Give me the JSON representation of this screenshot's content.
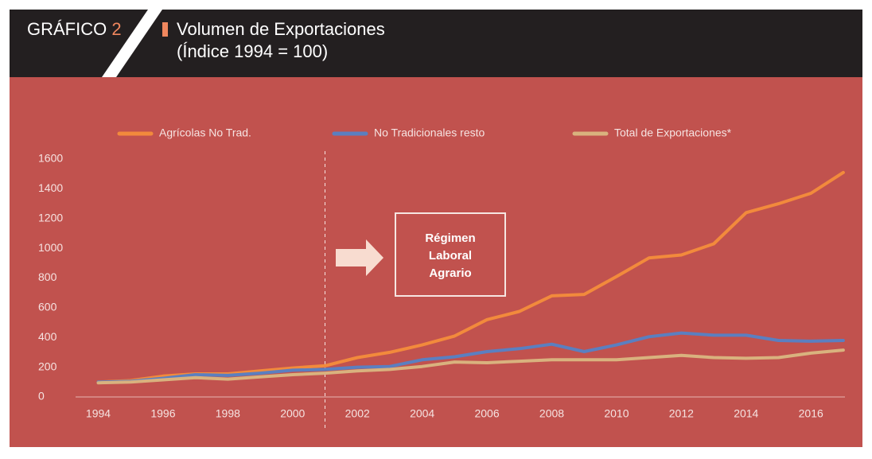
{
  "chart_data": {
    "type": "line",
    "figure_label": "GRÁFICO",
    "figure_number": "2",
    "title": "Volumen de Exportaciones",
    "subtitle": "(Índice 1994 = 100)",
    "x": [
      1994,
      1995,
      1996,
      1997,
      1998,
      1999,
      2000,
      2001,
      2002,
      2003,
      2004,
      2005,
      2006,
      2007,
      2008,
      2009,
      2010,
      2011,
      2012,
      2013,
      2014,
      2015,
      2016,
      2017
    ],
    "series": [
      {
        "name": "Agrícolas No Trad.",
        "color": "#f28a3c",
        "values": [
          100,
          110,
          140,
          155,
          155,
          175,
          195,
          210,
          265,
          300,
          350,
          410,
          520,
          575,
          680,
          690,
          810,
          935,
          955,
          1030,
          1240,
          1300,
          1370,
          1510
        ]
      },
      {
        "name": "No Tradicionales resto",
        "color": "#5b7fc0",
        "values": [
          100,
          105,
          125,
          150,
          145,
          160,
          180,
          185,
          200,
          205,
          250,
          270,
          305,
          325,
          355,
          305,
          350,
          405,
          430,
          415,
          415,
          380,
          375,
          380
        ]
      },
      {
        "name": "Total de Exportaciones*",
        "color": "#d9b27e",
        "values": [
          95,
          100,
          115,
          130,
          120,
          135,
          150,
          160,
          175,
          185,
          205,
          235,
          230,
          240,
          250,
          250,
          250,
          265,
          280,
          265,
          260,
          265,
          295,
          315
        ]
      }
    ],
    "xlim": [
      1993.3,
      2017.1
    ],
    "xticks": [
      1994,
      1996,
      1998,
      2000,
      2002,
      2004,
      2006,
      2008,
      2010,
      2012,
      2014,
      2016
    ],
    "ylim": [
      0,
      1600
    ],
    "yticks": [
      0,
      200,
      400,
      600,
      800,
      1000,
      1200,
      1400,
      1600
    ],
    "legend": "top",
    "vline": 2001,
    "annotation": [
      "Régimen",
      "Laboral",
      "Agrario"
    ]
  }
}
